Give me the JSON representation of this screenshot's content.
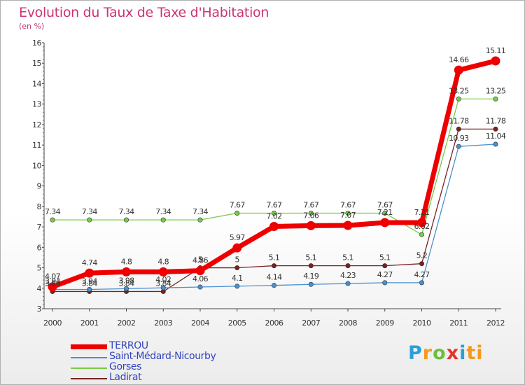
{
  "chart_data": {
    "type": "line",
    "title": "Evolution du Taux de Taxe d'Habitation",
    "ylabel": "(en %)",
    "xlabel": "",
    "x": [
      "2000",
      "2001",
      "2002",
      "2003",
      "2004",
      "2005",
      "2006",
      "2007",
      "2008",
      "2009",
      "2010",
      "2011",
      "2012"
    ],
    "ylim": [
      3,
      16
    ],
    "yticks": [
      "3",
      "4",
      "5",
      "6",
      "7",
      "8",
      "9",
      "10",
      "11",
      "12",
      "13",
      "14",
      "15",
      "16"
    ],
    "grid": false,
    "legend_position": "bottom-left",
    "series": [
      {
        "name": "TERROU",
        "color": "#ee0000",
        "values": [
          4.07,
          4.74,
          4.8,
          4.8,
          4.86,
          5.97,
          7.02,
          7.06,
          7.07,
          7.21,
          7.21,
          14.66,
          15.11
        ],
        "labels": [
          "4.07",
          "4.74",
          "4.8",
          "4.8",
          "4.86",
          "5.97",
          "7.02",
          "7.06",
          "7.07",
          "7.21",
          "7.21",
          "14.66",
          "15.11"
        ]
      },
      {
        "name": "Saint-Médard-Nicourby",
        "color": "#4a90d0",
        "values": [
          3.94,
          3.94,
          3.98,
          4.02,
          4.06,
          4.1,
          4.14,
          4.19,
          4.23,
          4.27,
          4.27,
          10.93,
          11.04
        ],
        "labels": [
          "3.94",
          "3.94",
          "3.98",
          "4.02",
          "4.06",
          "4.1",
          "4.14",
          "4.19",
          "4.23",
          "4.27",
          "4.27",
          "10.93",
          "11.04"
        ]
      },
      {
        "name": "Gorses",
        "color": "#77cc44",
        "values": [
          7.34,
          7.34,
          7.34,
          7.34,
          7.34,
          7.67,
          7.67,
          7.67,
          7.67,
          7.67,
          6.62,
          13.25,
          13.25
        ],
        "labels": [
          "7.34",
          "7.34",
          "7.34",
          "7.34",
          "7.34",
          "7.67",
          "7.67",
          "7.67",
          "7.67",
          "7.67",
          "6.62",
          "13.25",
          "13.25"
        ]
      },
      {
        "name": "Ladirat",
        "color": "#772222",
        "values": [
          3.84,
          3.84,
          3.84,
          3.84,
          5.0,
          5.0,
          5.1,
          5.1,
          5.1,
          5.1,
          5.2,
          11.78,
          11.78
        ],
        "labels": [
          "3.84",
          "3.84",
          "3.84",
          "3.84",
          "5",
          "5",
          "5.1",
          "5.1",
          "5.1",
          "5.1",
          "5.2",
          "11.78",
          "11.78"
        ]
      }
    ]
  },
  "logo_letters": [
    "P",
    "r",
    "o",
    "x",
    "i",
    "ti"
  ]
}
